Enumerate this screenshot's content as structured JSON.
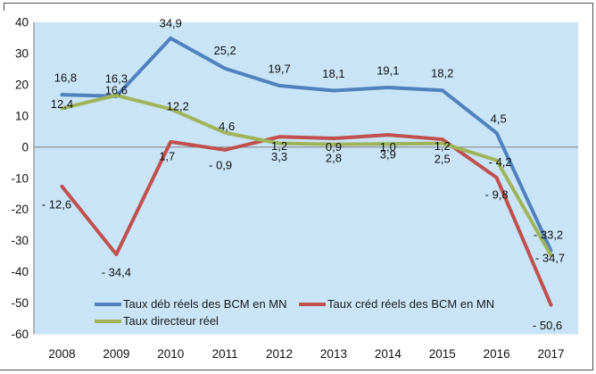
{
  "chart_data": {
    "type": "line",
    "title": "",
    "xlabel": "",
    "ylabel": "",
    "categories": [
      "2008",
      "2009",
      "2010",
      "2011",
      "2012",
      "2013",
      "2014",
      "2015",
      "2016",
      "2017"
    ],
    "series": [
      {
        "name": "Taux déb réels des BCM en MN",
        "color": "#4F81BD",
        "values": [
          16.8,
          16.3,
          34.9,
          25.2,
          19.7,
          18.1,
          19.1,
          18.2,
          4.5,
          -33.2
        ],
        "point_labels": [
          "16,8",
          "16,3",
          "34,9",
          "25,2",
          "19,7",
          "18,1",
          "19,1",
          "18,2",
          "4,5",
          "- 33,2"
        ]
      },
      {
        "name": "Taux créd réels des BCM en MN",
        "color": "#C0504D",
        "values": [
          -12.6,
          -34.4,
          1.7,
          -0.9,
          3.3,
          2.8,
          3.9,
          2.5,
          -9.8,
          -50.6
        ],
        "point_labels": [
          "- 12,6",
          "- 34,4",
          "1,7",
          "- 0,9",
          "3,3",
          "2,8",
          "3,9",
          "2,5",
          "- 9,8",
          "- 50,6"
        ]
      },
      {
        "name": "Taux directeur réel",
        "color": "#9FB459",
        "values": [
          12.4,
          16.6,
          12.2,
          4.6,
          1.2,
          0.9,
          1.0,
          1.2,
          -4.2,
          -34.7
        ],
        "point_labels": [
          "12,4",
          "16,6",
          "12,2",
          "4,6",
          "1,2",
          "0,9",
          "1,0",
          "1,2",
          "- 4,2",
          "- 34,7"
        ]
      }
    ],
    "y_ticks": [
      "40",
      "30",
      "20",
      "10",
      "0",
      "-10",
      "-20",
      "-30",
      "-40",
      "-50",
      "-60"
    ],
    "ylim": [
      -60,
      40
    ],
    "grid": false,
    "zero_line": true,
    "legend_position": "bottom-inside",
    "plot_bg_color": "#C8E4F6",
    "axis_color": "#8a8a8a",
    "text_color": "#111111"
  }
}
